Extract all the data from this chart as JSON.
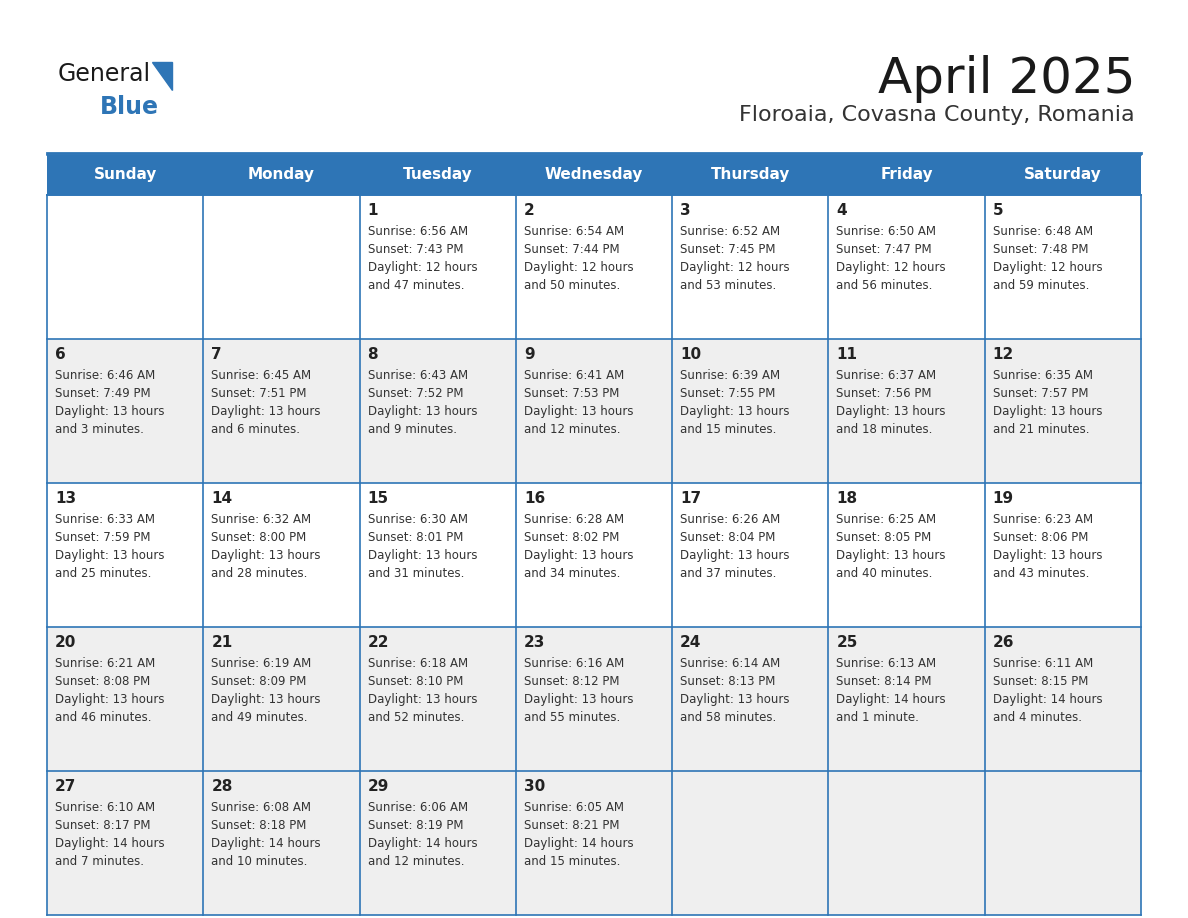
{
  "title": "April 2025",
  "subtitle": "Floroaia, Covasna County, Romania",
  "header_bg": "#2E75B6",
  "header_text_color": "#FFFFFF",
  "cell_bg_white": "#FFFFFF",
  "cell_bg_gray": "#EFEFEF",
  "grid_line_color": "#2E75B6",
  "text_color": "#333333",
  "days_of_week": [
    "Sunday",
    "Monday",
    "Tuesday",
    "Wednesday",
    "Thursday",
    "Friday",
    "Saturday"
  ],
  "weeks": [
    [
      {
        "day": "",
        "sunrise": "",
        "sunset": "",
        "daylight": ""
      },
      {
        "day": "",
        "sunrise": "",
        "sunset": "",
        "daylight": ""
      },
      {
        "day": "1",
        "sunrise": "Sunrise: 6:56 AM",
        "sunset": "Sunset: 7:43 PM",
        "daylight": "Daylight: 12 hours\nand 47 minutes."
      },
      {
        "day": "2",
        "sunrise": "Sunrise: 6:54 AM",
        "sunset": "Sunset: 7:44 PM",
        "daylight": "Daylight: 12 hours\nand 50 minutes."
      },
      {
        "day": "3",
        "sunrise": "Sunrise: 6:52 AM",
        "sunset": "Sunset: 7:45 PM",
        "daylight": "Daylight: 12 hours\nand 53 minutes."
      },
      {
        "day": "4",
        "sunrise": "Sunrise: 6:50 AM",
        "sunset": "Sunset: 7:47 PM",
        "daylight": "Daylight: 12 hours\nand 56 minutes."
      },
      {
        "day": "5",
        "sunrise": "Sunrise: 6:48 AM",
        "sunset": "Sunset: 7:48 PM",
        "daylight": "Daylight: 12 hours\nand 59 minutes."
      }
    ],
    [
      {
        "day": "6",
        "sunrise": "Sunrise: 6:46 AM",
        "sunset": "Sunset: 7:49 PM",
        "daylight": "Daylight: 13 hours\nand 3 minutes."
      },
      {
        "day": "7",
        "sunrise": "Sunrise: 6:45 AM",
        "sunset": "Sunset: 7:51 PM",
        "daylight": "Daylight: 13 hours\nand 6 minutes."
      },
      {
        "day": "8",
        "sunrise": "Sunrise: 6:43 AM",
        "sunset": "Sunset: 7:52 PM",
        "daylight": "Daylight: 13 hours\nand 9 minutes."
      },
      {
        "day": "9",
        "sunrise": "Sunrise: 6:41 AM",
        "sunset": "Sunset: 7:53 PM",
        "daylight": "Daylight: 13 hours\nand 12 minutes."
      },
      {
        "day": "10",
        "sunrise": "Sunrise: 6:39 AM",
        "sunset": "Sunset: 7:55 PM",
        "daylight": "Daylight: 13 hours\nand 15 minutes."
      },
      {
        "day": "11",
        "sunrise": "Sunrise: 6:37 AM",
        "sunset": "Sunset: 7:56 PM",
        "daylight": "Daylight: 13 hours\nand 18 minutes."
      },
      {
        "day": "12",
        "sunrise": "Sunrise: 6:35 AM",
        "sunset": "Sunset: 7:57 PM",
        "daylight": "Daylight: 13 hours\nand 21 minutes."
      }
    ],
    [
      {
        "day": "13",
        "sunrise": "Sunrise: 6:33 AM",
        "sunset": "Sunset: 7:59 PM",
        "daylight": "Daylight: 13 hours\nand 25 minutes."
      },
      {
        "day": "14",
        "sunrise": "Sunrise: 6:32 AM",
        "sunset": "Sunset: 8:00 PM",
        "daylight": "Daylight: 13 hours\nand 28 minutes."
      },
      {
        "day": "15",
        "sunrise": "Sunrise: 6:30 AM",
        "sunset": "Sunset: 8:01 PM",
        "daylight": "Daylight: 13 hours\nand 31 minutes."
      },
      {
        "day": "16",
        "sunrise": "Sunrise: 6:28 AM",
        "sunset": "Sunset: 8:02 PM",
        "daylight": "Daylight: 13 hours\nand 34 minutes."
      },
      {
        "day": "17",
        "sunrise": "Sunrise: 6:26 AM",
        "sunset": "Sunset: 8:04 PM",
        "daylight": "Daylight: 13 hours\nand 37 minutes."
      },
      {
        "day": "18",
        "sunrise": "Sunrise: 6:25 AM",
        "sunset": "Sunset: 8:05 PM",
        "daylight": "Daylight: 13 hours\nand 40 minutes."
      },
      {
        "day": "19",
        "sunrise": "Sunrise: 6:23 AM",
        "sunset": "Sunset: 8:06 PM",
        "daylight": "Daylight: 13 hours\nand 43 minutes."
      }
    ],
    [
      {
        "day": "20",
        "sunrise": "Sunrise: 6:21 AM",
        "sunset": "Sunset: 8:08 PM",
        "daylight": "Daylight: 13 hours\nand 46 minutes."
      },
      {
        "day": "21",
        "sunrise": "Sunrise: 6:19 AM",
        "sunset": "Sunset: 8:09 PM",
        "daylight": "Daylight: 13 hours\nand 49 minutes."
      },
      {
        "day": "22",
        "sunrise": "Sunrise: 6:18 AM",
        "sunset": "Sunset: 8:10 PM",
        "daylight": "Daylight: 13 hours\nand 52 minutes."
      },
      {
        "day": "23",
        "sunrise": "Sunrise: 6:16 AM",
        "sunset": "Sunset: 8:12 PM",
        "daylight": "Daylight: 13 hours\nand 55 minutes."
      },
      {
        "day": "24",
        "sunrise": "Sunrise: 6:14 AM",
        "sunset": "Sunset: 8:13 PM",
        "daylight": "Daylight: 13 hours\nand 58 minutes."
      },
      {
        "day": "25",
        "sunrise": "Sunrise: 6:13 AM",
        "sunset": "Sunset: 8:14 PM",
        "daylight": "Daylight: 14 hours\nand 1 minute."
      },
      {
        "day": "26",
        "sunrise": "Sunrise: 6:11 AM",
        "sunset": "Sunset: 8:15 PM",
        "daylight": "Daylight: 14 hours\nand 4 minutes."
      }
    ],
    [
      {
        "day": "27",
        "sunrise": "Sunrise: 6:10 AM",
        "sunset": "Sunset: 8:17 PM",
        "daylight": "Daylight: 14 hours\nand 7 minutes."
      },
      {
        "day": "28",
        "sunrise": "Sunrise: 6:08 AM",
        "sunset": "Sunset: 8:18 PM",
        "daylight": "Daylight: 14 hours\nand 10 minutes."
      },
      {
        "day": "29",
        "sunrise": "Sunrise: 6:06 AM",
        "sunset": "Sunset: 8:19 PM",
        "daylight": "Daylight: 14 hours\nand 12 minutes."
      },
      {
        "day": "30",
        "sunrise": "Sunrise: 6:05 AM",
        "sunset": "Sunset: 8:21 PM",
        "daylight": "Daylight: 14 hours\nand 15 minutes."
      },
      {
        "day": "",
        "sunrise": "",
        "sunset": "",
        "daylight": ""
      },
      {
        "day": "",
        "sunrise": "",
        "sunset": "",
        "daylight": ""
      },
      {
        "day": "",
        "sunrise": "",
        "sunset": "",
        "daylight": ""
      }
    ]
  ],
  "week_bg_colors": [
    "#FFFFFF",
    "#EFEFEF",
    "#FFFFFF",
    "#EFEFEF",
    "#EFEFEF"
  ]
}
